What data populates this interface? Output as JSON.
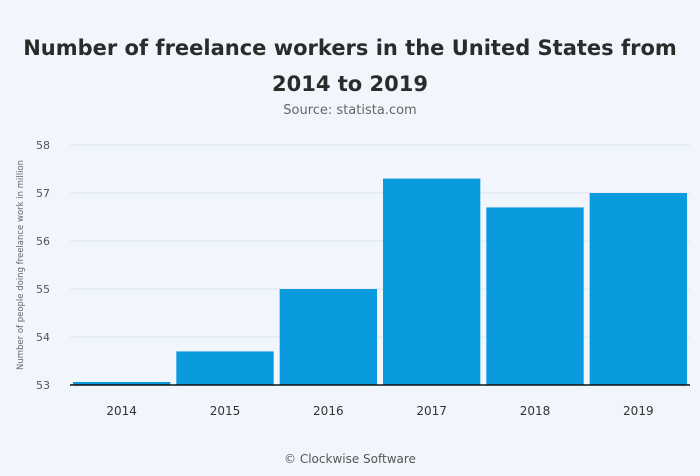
{
  "chart_data": {
    "type": "bar",
    "title": "Number of freelance workers in the United States from 2014 to 2019",
    "subtitle": "Source: statista.com",
    "ylabel": "Number of people doing freelance work in million",
    "xlabel": "",
    "categories": [
      "2014",
      "2015",
      "2016",
      "2017",
      "2018",
      "2019"
    ],
    "values": [
      53.05,
      53.7,
      55,
      57.3,
      56.7,
      57
    ],
    "ylim": [
      53,
      58
    ],
    "yticks": [
      "53",
      "54",
      "55",
      "56",
      "57",
      "58"
    ],
    "grid": true,
    "bar_color": "#0a9ade"
  },
  "footer": "© Clockwise Software"
}
